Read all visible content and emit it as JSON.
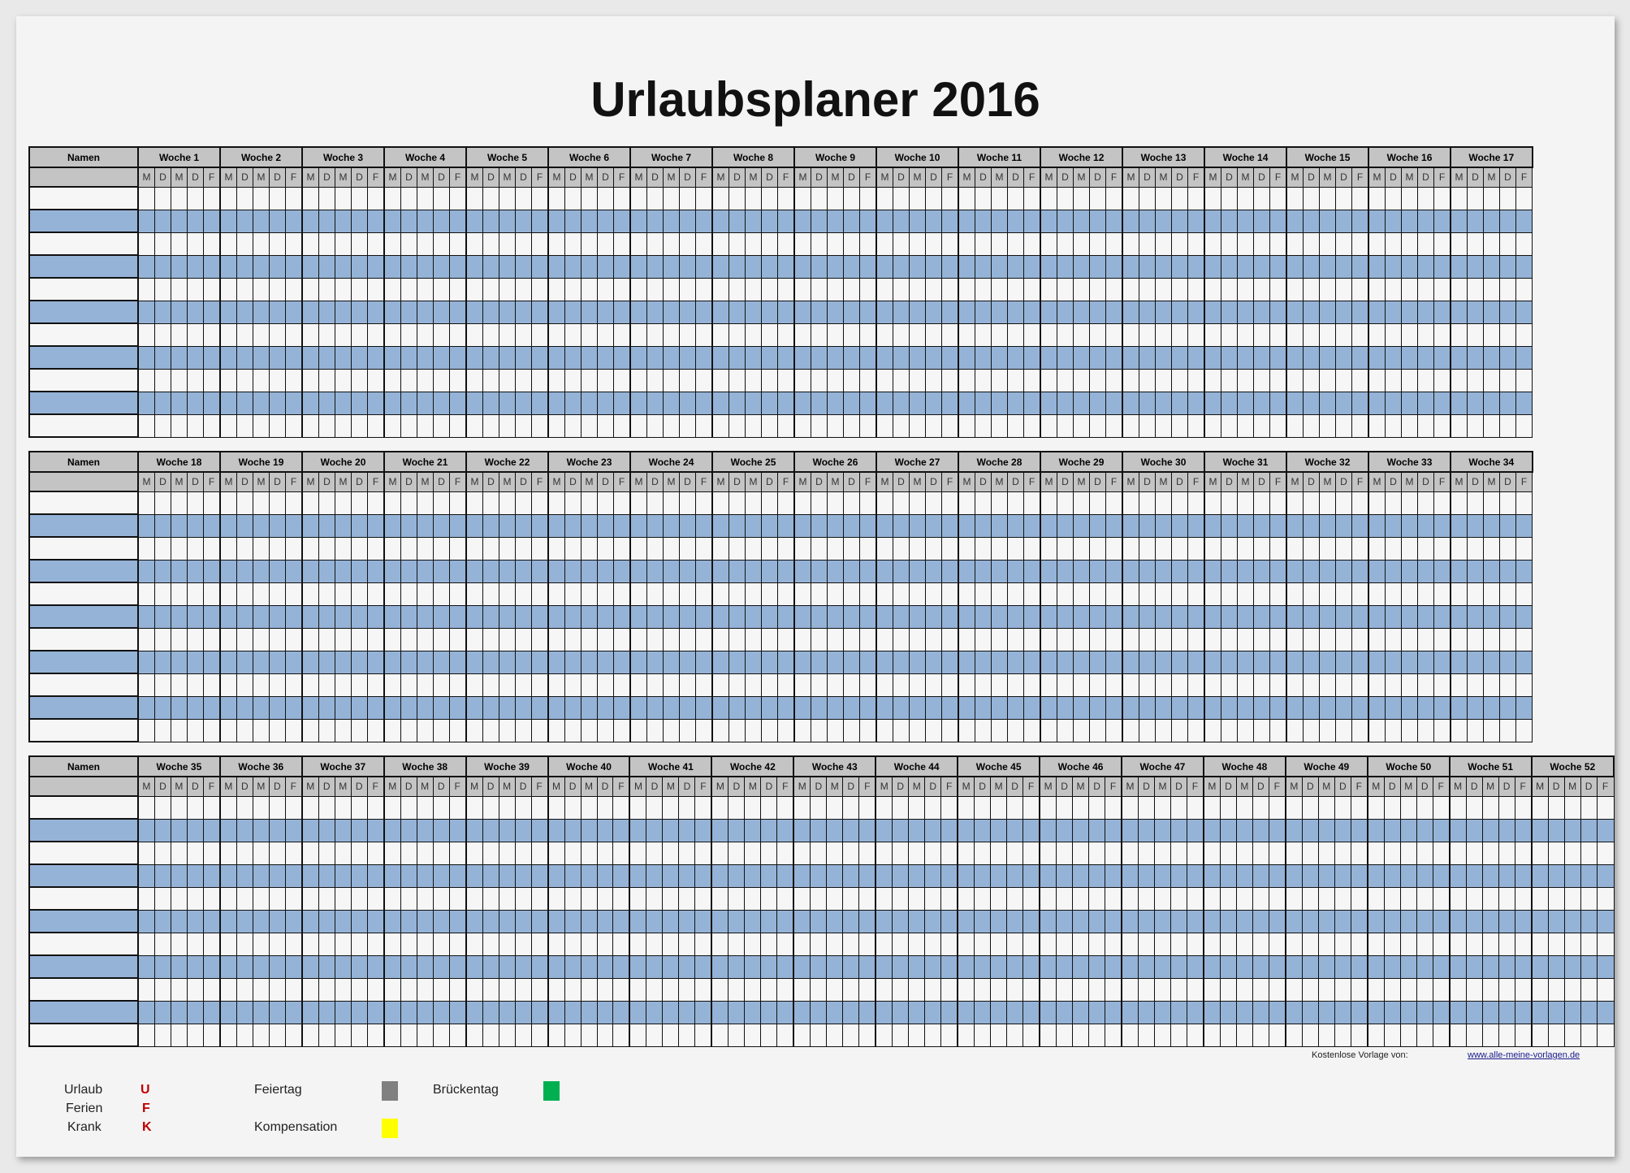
{
  "title": "Urlaubsplaner 2016",
  "names_header": "Namen",
  "days": [
    "M",
    "D",
    "M",
    "D",
    "F"
  ],
  "rows_per_block": 11,
  "colors": {
    "header": "#c4c4c4",
    "row_alt": "#95b3d7",
    "feiertag": "#808080",
    "brueckentag": "#00b050",
    "kompensation": "#ffff00",
    "code": "#c00000"
  },
  "blocks": [
    {
      "weeks": [
        "Woche 1",
        "Woche 2",
        "Woche 3",
        "Woche 4",
        "Woche 5",
        "Woche 6",
        "Woche 7",
        "Woche 8",
        "Woche 9",
        "Woche 10",
        "Woche 11",
        "Woche 12",
        "Woche 13",
        "Woche 14",
        "Woche 15",
        "Woche 16",
        "Woche 17"
      ]
    },
    {
      "weeks": [
        "Woche 18",
        "Woche 19",
        "Woche 20",
        "Woche 21",
        "Woche 22",
        "Woche 23",
        "Woche 24",
        "Woche 25",
        "Woche 26",
        "Woche 27",
        "Woche 28",
        "Woche 29",
        "Woche 30",
        "Woche 31",
        "Woche 32",
        "Woche 33",
        "Woche 34"
      ]
    },
    {
      "weeks": [
        "Woche 35",
        "Woche 36",
        "Woche 37",
        "Woche 38",
        "Woche 39",
        "Woche 40",
        "Woche 41",
        "Woche 42",
        "Woche 43",
        "Woche 44",
        "Woche 45",
        "Woche 46",
        "Woche 47",
        "Woche 48",
        "Woche 49",
        "Woche 50",
        "Woche 51",
        "Woche 52"
      ]
    }
  ],
  "footer": {
    "credit": "Kostenlose Vorlage von:",
    "link": "www.alle-meine-vorlagen.de"
  },
  "legend": {
    "urlaub": {
      "label": "Urlaub",
      "code": "U"
    },
    "ferien": {
      "label": "Ferien",
      "code": "F"
    },
    "krank": {
      "label": "Krank",
      "code": "K"
    },
    "feiertag": {
      "label": "Feiertag"
    },
    "brueckentag": {
      "label": "Brückentag"
    },
    "kompensation": {
      "label": "Kompensation"
    }
  }
}
